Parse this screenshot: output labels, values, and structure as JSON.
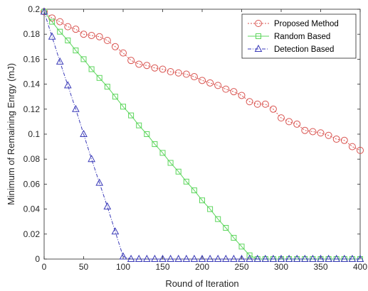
{
  "chart_data": {
    "type": "line",
    "xlabel": "Round of Iteration",
    "ylabel": "Minimum of Remaining Enrgy (mJ)",
    "xlim": [
      0,
      400
    ],
    "ylim": [
      0,
      0.2
    ],
    "x_ticks": [
      0,
      50,
      100,
      150,
      200,
      250,
      300,
      350,
      400
    ],
    "y_ticks": [
      0,
      0.02,
      0.04,
      0.06,
      0.08,
      0.1,
      0.12,
      0.14,
      0.16,
      0.18,
      0.2
    ],
    "grid": false,
    "legend_position": "top-right",
    "series": [
      {
        "name": "Proposed Method",
        "color": "#d9534f",
        "marker": "circle",
        "line_style": "dotted",
        "x": [
          0,
          10,
          20,
          30,
          40,
          50,
          60,
          70,
          80,
          90,
          100,
          110,
          120,
          130,
          140,
          150,
          160,
          170,
          180,
          190,
          200,
          210,
          220,
          230,
          240,
          250,
          260,
          270,
          280,
          290,
          300,
          310,
          320,
          330,
          340,
          350,
          360,
          370,
          380,
          390,
          400
        ],
        "y": [
          0.198,
          0.193,
          0.19,
          0.186,
          0.184,
          0.18,
          0.179,
          0.178,
          0.175,
          0.17,
          0.165,
          0.159,
          0.156,
          0.155,
          0.153,
          0.152,
          0.15,
          0.149,
          0.148,
          0.146,
          0.143,
          0.141,
          0.139,
          0.136,
          0.134,
          0.131,
          0.126,
          0.124,
          0.124,
          0.12,
          0.113,
          0.11,
          0.108,
          0.103,
          0.102,
          0.101,
          0.099,
          0.096,
          0.095,
          0.09,
          0.087
        ]
      },
      {
        "name": "Random Based",
        "color": "#5cd65c",
        "marker": "square",
        "line_style": "solid",
        "x": [
          0,
          10,
          20,
          30,
          40,
          50,
          60,
          70,
          80,
          90,
          100,
          110,
          120,
          130,
          140,
          150,
          160,
          170,
          180,
          190,
          200,
          210,
          220,
          230,
          240,
          250,
          260,
          270,
          280,
          290,
          300,
          310,
          320,
          330,
          340,
          350,
          360,
          370,
          380,
          390,
          400
        ],
        "y": [
          0.198,
          0.19,
          0.182,
          0.175,
          0.167,
          0.16,
          0.152,
          0.145,
          0.138,
          0.13,
          0.122,
          0.115,
          0.107,
          0.1,
          0.092,
          0.085,
          0.077,
          0.07,
          0.062,
          0.055,
          0.047,
          0.04,
          0.032,
          0.025,
          0.017,
          0.01,
          0.003,
          0.0,
          0.0,
          0.0,
          0.0,
          0.0,
          0.0,
          0.0,
          0.0,
          0.0,
          0.0,
          0.0,
          0.0,
          0.0,
          0.0
        ]
      },
      {
        "name": "Detection Based",
        "color": "#3a3ab8",
        "marker": "triangle",
        "line_style": "dash-dot",
        "x": [
          0,
          10,
          20,
          30,
          40,
          50,
          60,
          70,
          80,
          90,
          100,
          110,
          120,
          130,
          140,
          150,
          160,
          170,
          180,
          190,
          200,
          210,
          220,
          230,
          240,
          250,
          260,
          270,
          280,
          290,
          300,
          310,
          320,
          330,
          340,
          350,
          360,
          370,
          380,
          390,
          400
        ],
        "y": [
          0.198,
          0.178,
          0.158,
          0.139,
          0.12,
          0.1,
          0.08,
          0.061,
          0.042,
          0.022,
          0.002,
          0.0,
          0.0,
          0.0,
          0.0,
          0.0,
          0.0,
          0.0,
          0.0,
          0.0,
          0.0,
          0.0,
          0.0,
          0.0,
          0.0,
          0.0,
          0.0,
          0.0,
          0.0,
          0.0,
          0.0,
          0.0,
          0.0,
          0.0,
          0.0,
          0.0,
          0.0,
          0.0,
          0.0,
          0.0,
          0.0
        ]
      }
    ]
  }
}
